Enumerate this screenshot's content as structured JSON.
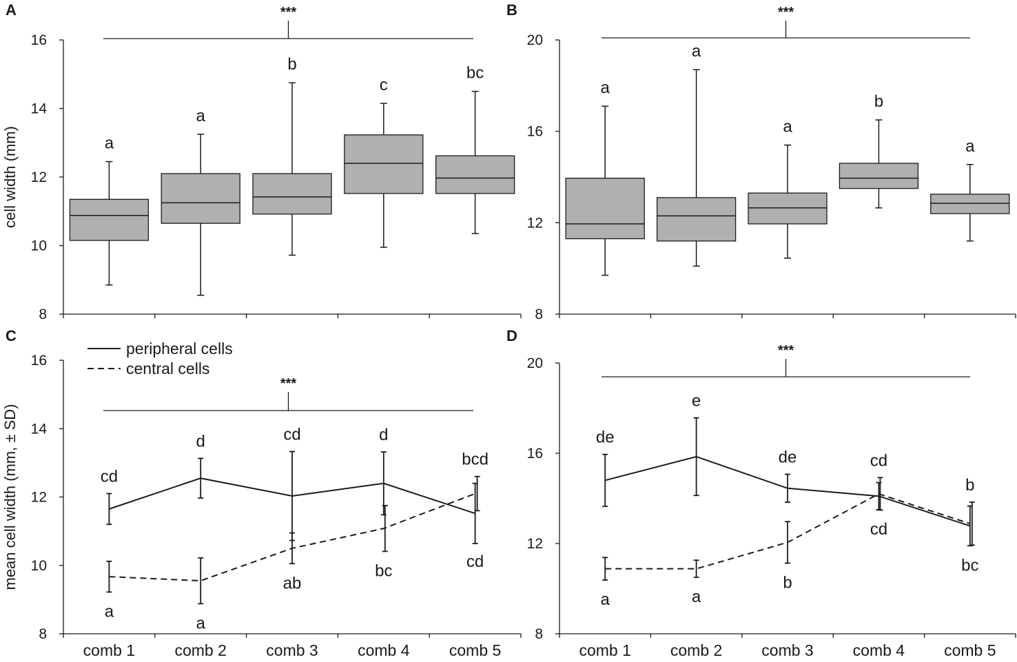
{
  "chart_data": [
    {
      "panel": "A",
      "type": "box",
      "categories": [
        "comb 1",
        "comb 2",
        "comb 3",
        "comb 4",
        "comb 5"
      ],
      "ylabel": "cell width (mm)",
      "ylim": [
        8,
        16
      ],
      "yticks": [
        8,
        10,
        12,
        14,
        16
      ],
      "significance": "***",
      "boxes": [
        {
          "min": 8.85,
          "q1": 10.15,
          "median": 10.88,
          "q3": 11.35,
          "max": 12.45,
          "letter": "a"
        },
        {
          "min": 8.55,
          "q1": 10.65,
          "median": 11.25,
          "q3": 12.1,
          "max": 13.25,
          "letter": "a"
        },
        {
          "min": 9.72,
          "q1": 10.92,
          "median": 11.42,
          "q3": 12.1,
          "max": 14.75,
          "letter": "b"
        },
        {
          "min": 9.95,
          "q1": 11.52,
          "median": 12.4,
          "q3": 13.23,
          "max": 14.15,
          "letter": "c"
        },
        {
          "min": 10.35,
          "q1": 11.52,
          "median": 11.97,
          "q3": 12.62,
          "max": 14.5,
          "letter": "bc"
        }
      ]
    },
    {
      "panel": "B",
      "type": "box",
      "categories": [
        "comb 1",
        "comb 2",
        "comb 3",
        "comb 4",
        "comb 5"
      ],
      "ylabel": "",
      "ylim": [
        8,
        20
      ],
      "yticks": [
        8,
        12,
        16,
        20
      ],
      "significance": "***",
      "boxes": [
        {
          "min": 9.7,
          "q1": 11.3,
          "median": 11.95,
          "q3": 13.95,
          "max": 17.1,
          "letter": "a"
        },
        {
          "min": 10.1,
          "q1": 11.2,
          "median": 12.3,
          "q3": 13.1,
          "max": 18.7,
          "letter": "a"
        },
        {
          "min": 10.45,
          "q1": 11.95,
          "median": 12.65,
          "q3": 13.3,
          "max": 15.4,
          "letter": "a"
        },
        {
          "min": 12.65,
          "q1": 13.5,
          "median": 13.95,
          "q3": 14.6,
          "max": 16.5,
          "letter": "b"
        },
        {
          "min": 11.2,
          "q1": 12.4,
          "median": 12.85,
          "q3": 13.25,
          "max": 14.55,
          "letter": "a"
        }
      ]
    },
    {
      "panel": "C",
      "type": "line",
      "categories": [
        "comb 1",
        "comb 2",
        "comb 3",
        "comb 4",
        "comb 5"
      ],
      "ylabel": "mean cell width (mm, ± SD)",
      "ylim": [
        8,
        16
      ],
      "yticks": [
        8,
        10,
        12,
        14,
        16
      ],
      "significance": "***",
      "legend": [
        "peripheral cells",
        "central cells"
      ],
      "series": [
        {
          "name": "peripheral cells",
          "style": "solid",
          "values": [
            11.65,
            12.55,
            12.03,
            12.4,
            11.52
          ],
          "sd": [
            0.45,
            0.58,
            1.3,
            0.92,
            0.88
          ],
          "letters": [
            "cd",
            "d",
            "cd",
            "d",
            "cd"
          ]
        },
        {
          "name": "central cells",
          "style": "dashed",
          "values": [
            9.67,
            9.55,
            10.5,
            11.08,
            12.1
          ],
          "sd": [
            0.45,
            0.67,
            0.45,
            0.67,
            0.5
          ],
          "letters": [
            "a",
            "a",
            "ab",
            "bc",
            "bcd"
          ]
        }
      ]
    },
    {
      "panel": "D",
      "type": "line",
      "categories": [
        "comb 1",
        "comb 2",
        "comb 3",
        "comb 4",
        "comb 5"
      ],
      "ylabel": "",
      "ylim": [
        8,
        20
      ],
      "yticks": [
        8,
        12,
        16,
        20
      ],
      "significance": "***",
      "series": [
        {
          "name": "peripheral cells",
          "style": "solid",
          "values": [
            14.8,
            15.85,
            14.45,
            14.1,
            12.78
          ],
          "sd": [
            1.15,
            1.72,
            0.62,
            0.6,
            0.88
          ],
          "letters": [
            "de",
            "e",
            "de",
            "cd",
            "bc"
          ]
        },
        {
          "name": "central cells",
          "style": "dashed",
          "values": [
            10.88,
            10.88,
            12.05,
            14.2,
            12.88
          ],
          "sd": [
            0.5,
            0.38,
            0.92,
            0.72,
            0.95
          ],
          "letters": [
            "a",
            "a",
            "b",
            "cd",
            "b"
          ]
        }
      ]
    }
  ]
}
